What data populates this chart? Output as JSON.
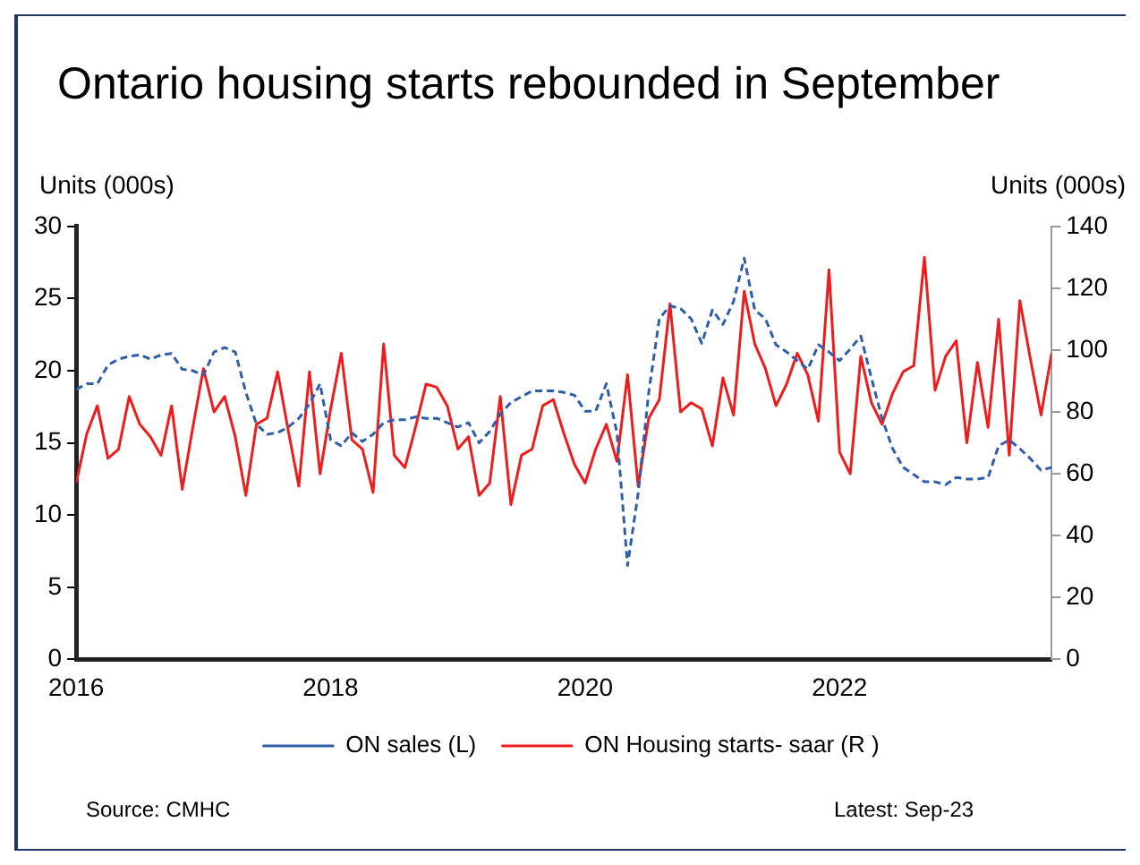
{
  "chart_data": {
    "type": "line",
    "title": "Ontario housing starts rebounded in September",
    "ylabel": "Units (000s)",
    "y2label": "Units (000s)",
    "x": [
      "2016-01",
      "2016-02",
      "2016-03",
      "2016-04",
      "2016-05",
      "2016-06",
      "2016-07",
      "2016-08",
      "2016-09",
      "2016-10",
      "2016-11",
      "2016-12",
      "2017-01",
      "2017-02",
      "2017-03",
      "2017-04",
      "2017-05",
      "2017-06",
      "2017-07",
      "2017-08",
      "2017-09",
      "2017-10",
      "2017-11",
      "2017-12",
      "2018-01",
      "2018-02",
      "2018-03",
      "2018-04",
      "2018-05",
      "2018-06",
      "2018-07",
      "2018-08",
      "2018-09",
      "2018-10",
      "2018-11",
      "2018-12",
      "2019-01",
      "2019-02",
      "2019-03",
      "2019-04",
      "2019-05",
      "2019-06",
      "2019-07",
      "2019-08",
      "2019-09",
      "2019-10",
      "2019-11",
      "2019-12",
      "2020-01",
      "2020-02",
      "2020-03",
      "2020-04",
      "2020-05",
      "2020-06",
      "2020-07",
      "2020-08",
      "2020-09",
      "2020-10",
      "2020-11",
      "2020-12",
      "2021-01",
      "2021-02",
      "2021-03",
      "2021-04",
      "2021-05",
      "2021-06",
      "2021-07",
      "2021-08",
      "2021-09",
      "2021-10",
      "2021-11",
      "2021-12",
      "2022-01",
      "2022-02",
      "2022-03",
      "2022-04",
      "2022-05",
      "2022-06",
      "2022-07",
      "2022-08",
      "2022-09",
      "2022-10",
      "2022-11",
      "2022-12",
      "2023-01",
      "2023-02",
      "2023-03",
      "2023-04",
      "2023-05",
      "2023-06",
      "2023-07",
      "2023-08",
      "2023-09"
    ],
    "series": [
      {
        "name": "ON sales (L)",
        "color": "#2e5ea8",
        "line_style": "dashed",
        "values": [
          18.7,
          19.1,
          19.1,
          20.4,
          20.8,
          21.0,
          21.1,
          20.8,
          21.1,
          21.2,
          20.1,
          20.0,
          19.7,
          21.3,
          21.6,
          21.3,
          18.5,
          16.3,
          15.6,
          15.7,
          16.1,
          16.7,
          17.7,
          19.1,
          15.2,
          14.8,
          15.7,
          15.1,
          15.6,
          16.4,
          16.6,
          16.6,
          16.8,
          16.7,
          16.7,
          16.4,
          16.1,
          16.4,
          15.0,
          15.8,
          17.0,
          17.8,
          18.2,
          18.6,
          18.6,
          18.6,
          18.5,
          18.3,
          17.2,
          17.2,
          19.1,
          15.7,
          6.5,
          11.5,
          18.5,
          23.6,
          24.5,
          24.3,
          23.6,
          21.9,
          24.2,
          23.2,
          24.8,
          27.8,
          24.2,
          23.6,
          21.8,
          21.3,
          20.7,
          20.1,
          21.8,
          21.3,
          20.7,
          21.5,
          22.4,
          19.5,
          16.7,
          14.6,
          13.3,
          12.8,
          12.3,
          12.3,
          12.1,
          12.6,
          12.5,
          12.5,
          12.6,
          14.8,
          15.2,
          14.6,
          13.9,
          13.1,
          13.3
        ]
      },
      {
        "name": "ON Housing starts- saar (R )",
        "color": "#ee1c1c",
        "axis": "y2",
        "line_style": "solid",
        "values": [
          57,
          73,
          82,
          65,
          68,
          85,
          76,
          72,
          66,
          82,
          55,
          75,
          94,
          80,
          85,
          72,
          53,
          76,
          78,
          93,
          74,
          56,
          93,
          60,
          81,
          99,
          71,
          68,
          54,
          102,
          66,
          62,
          75,
          89,
          88,
          82,
          68,
          72,
          53,
          57,
          85,
          50,
          66,
          68,
          82,
          84,
          73,
          63,
          57,
          68,
          76,
          64,
          92,
          56,
          78,
          84,
          115,
          80,
          83,
          81,
          69,
          91,
          79,
          119,
          102,
          94,
          82,
          89,
          99,
          92,
          77,
          126,
          67,
          60,
          98,
          83,
          76,
          86,
          93,
          95,
          130,
          87,
          98,
          103,
          70,
          96,
          75,
          110,
          66,
          116,
          97,
          79,
          99
        ]
      }
    ],
    "xlim": [
      "2016-01",
      "2023-09"
    ],
    "xticks": [
      "2016",
      "2018",
      "2020",
      "2022"
    ],
    "ylim": [
      0,
      30
    ],
    "yticks": [
      0,
      5,
      10,
      15,
      20,
      25,
      30
    ],
    "y2lim": [
      0,
      140
    ],
    "y2ticks": [
      0,
      20,
      40,
      60,
      80,
      100,
      120,
      140
    ],
    "grid": false,
    "legend": "bottom",
    "marker": "none",
    "annotations": [
      "Source: CMHC",
      "Latest: Sep-23"
    ]
  }
}
